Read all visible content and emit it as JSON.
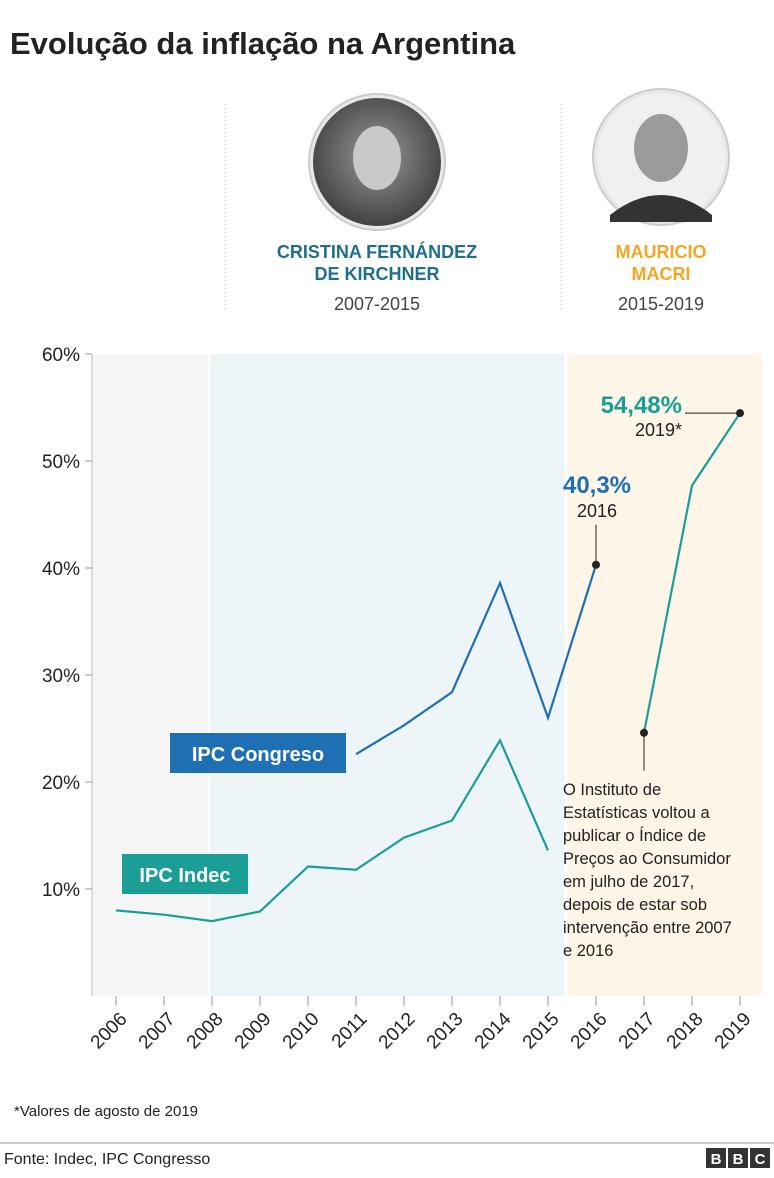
{
  "title": "Evolução da inflação na Argentina",
  "presidents": [
    {
      "name_lines": [
        "CRISTINA FERNÁNDEZ",
        "DE KIRCHNER"
      ],
      "years": "2007-2015",
      "color": "#1d6f8c"
    },
    {
      "name_lines": [
        "MAURICIO",
        "MACRI"
      ],
      "years": "2015-2019",
      "color": "#f5a623"
    }
  ],
  "chart_data": {
    "type": "line",
    "x": [
      2006,
      2007,
      2008,
      2009,
      2010,
      2011,
      2012,
      2013,
      2014,
      2015,
      2016,
      2017,
      2018,
      2019
    ],
    "xlim": [
      2005.5,
      2019.5
    ],
    "xticks": [
      2006,
      2007,
      2008,
      2009,
      2010,
      2011,
      2012,
      2013,
      2014,
      2015,
      2016,
      2017,
      2018,
      2019
    ],
    "ylim": [
      0,
      60
    ],
    "yticks": [
      {
        "value": 10,
        "label": "10%"
      },
      {
        "value": 20,
        "label": "20%"
      },
      {
        "value": 30,
        "label": "30%"
      },
      {
        "value": 40,
        "label": "40%"
      },
      {
        "value": 50,
        "label": "50%"
      },
      {
        "value": 60,
        "label": "60%"
      }
    ],
    "shaded_spans": [
      {
        "from": 2005.5,
        "to": 2007.92,
        "color": "#f5f5f5"
      },
      {
        "from": 2007.96,
        "to": 2015.35,
        "color": "#eef5f8"
      },
      {
        "from": 2015.4,
        "to": 2019.46,
        "color": "#fdf5e7"
      }
    ],
    "series": [
      {
        "name": "IPC Congreso",
        "color": "#1f6fb4",
        "values": [
          null,
          null,
          null,
          null,
          null,
          22.6,
          25.3,
          28.4,
          38.6,
          26.0,
          40.3,
          null,
          null,
          null
        ],
        "value_labels": [
          null,
          null,
          null,
          null,
          null,
          null,
          null,
          null,
          null,
          null,
          "40,3%",
          null,
          null,
          null
        ]
      },
      {
        "name": "IPC Indec",
        "color": "#1a9e96",
        "values": [
          8.0,
          7.6,
          7.0,
          7.9,
          12.1,
          11.8,
          14.8,
          16.4,
          23.9,
          13.6,
          null,
          24.6,
          47.7,
          54.48
        ],
        "value_labels": [
          null,
          null,
          null,
          null,
          null,
          null,
          null,
          null,
          null,
          null,
          null,
          null,
          null,
          "54,48%"
        ]
      }
    ],
    "annotations": [
      "2016",
      "2019*"
    ],
    "note_lines": [
      "O Instituto de",
      "Estatísticas voltou a",
      "publicar o Índice de",
      "Preços ao Consumidor",
      "em julho de 2017,",
      "depois de estar sob",
      "intervenção entre 2007",
      "e 2016"
    ]
  },
  "footnote": "*Valores de agosto de 2019",
  "source": "Fonte: Indec, IPC Congresso",
  "logo": [
    "B",
    "B",
    "C"
  ]
}
